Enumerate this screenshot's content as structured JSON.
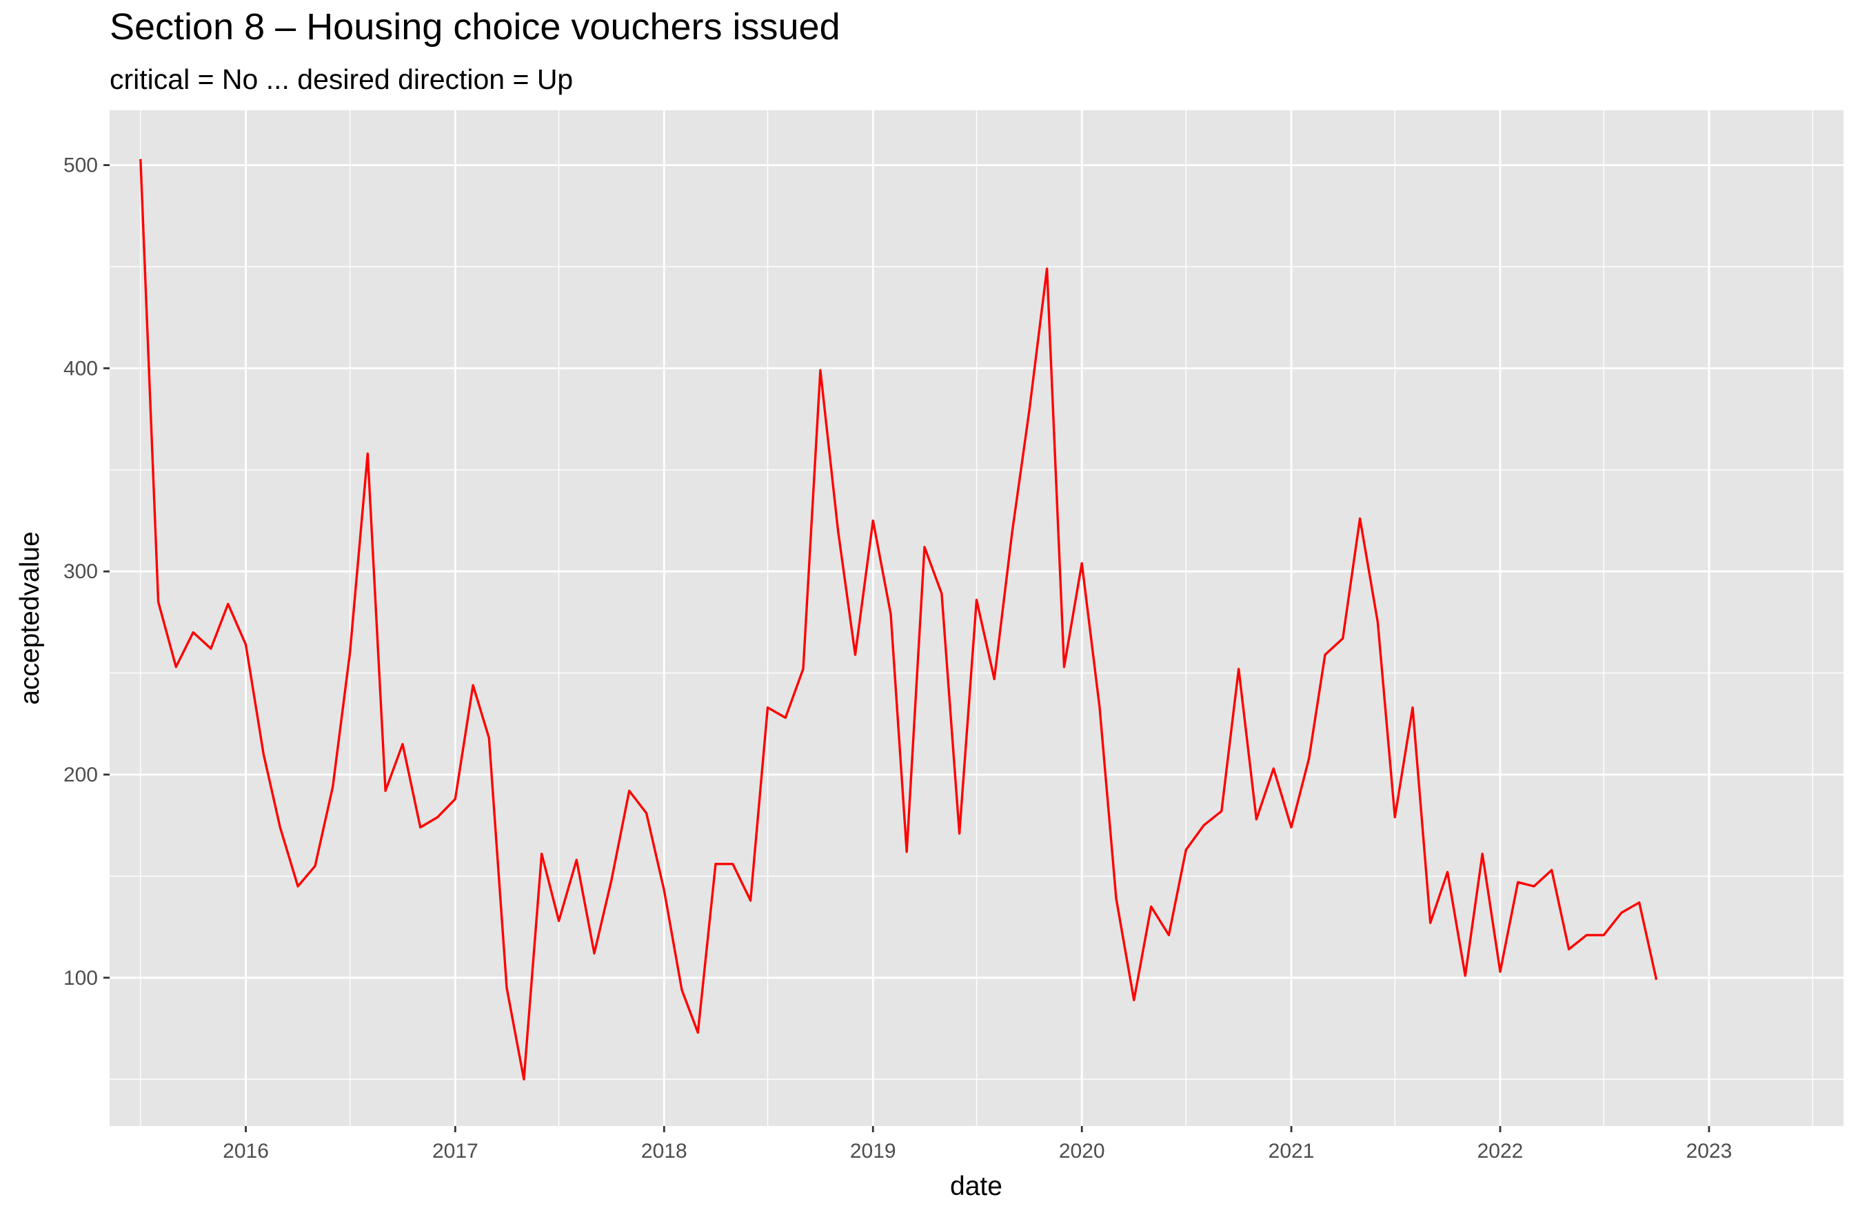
{
  "chart_data": {
    "type": "line",
    "title": "Section 8 – Housing choice vouchers issued",
    "subtitle": "critical = No ... desired direction = Up",
    "xlabel": "date",
    "ylabel": "acceptedvalue",
    "x_tick_labels": [
      "2016",
      "2017",
      "2018",
      "2019",
      "2020",
      "2021",
      "2022",
      "2023"
    ],
    "y_tick_labels": [
      "100",
      "200",
      "300",
      "400",
      "500"
    ],
    "ylim": [
      27,
      527
    ],
    "xlim": [
      "2015-05-08",
      "2023-08-24"
    ],
    "grid": true,
    "background": "#e5e5e5",
    "gridline_color": "#ffffff",
    "line_color": "#ff0000",
    "series": [
      {
        "x": [
          "2015-07-01",
          "2015-08-01",
          "2015-09-01",
          "2015-10-01",
          "2015-11-01",
          "2015-12-01",
          "2016-01-01",
          "2016-02-01",
          "2016-03-01",
          "2016-04-01",
          "2016-05-01",
          "2016-06-01",
          "2016-07-01",
          "2016-08-01",
          "2016-09-01",
          "2016-10-01",
          "2016-11-01",
          "2016-12-01",
          "2017-01-01",
          "2017-02-01",
          "2017-03-01",
          "2017-04-01",
          "2017-05-01",
          "2017-06-01",
          "2017-07-01",
          "2017-08-01",
          "2017-09-01",
          "2017-10-01",
          "2017-11-01",
          "2017-12-01",
          "2018-01-01",
          "2018-02-01",
          "2018-03-01",
          "2018-04-01",
          "2018-05-01",
          "2018-06-01",
          "2018-07-01",
          "2018-08-01",
          "2018-09-01",
          "2018-10-01",
          "2018-11-01",
          "2018-12-01",
          "2019-01-01",
          "2019-02-01",
          "2019-03-01",
          "2019-04-01",
          "2019-05-01",
          "2019-06-01",
          "2019-07-01",
          "2019-08-01",
          "2019-09-01",
          "2019-10-01",
          "2019-11-01",
          "2019-12-01",
          "2020-01-01",
          "2020-02-01",
          "2020-03-01",
          "2020-04-01",
          "2020-05-01",
          "2020-06-01",
          "2020-07-01",
          "2020-08-01",
          "2020-09-01",
          "2020-10-01",
          "2020-11-01",
          "2020-12-01",
          "2021-01-01",
          "2021-02-01",
          "2021-03-01",
          "2021-04-01",
          "2021-05-01",
          "2021-06-01",
          "2021-07-01",
          "2021-08-01",
          "2021-09-01",
          "2021-10-01",
          "2021-11-01",
          "2021-12-01",
          "2022-01-01",
          "2022-02-01",
          "2022-03-01",
          "2022-04-01",
          "2022-05-01",
          "2022-06-01",
          "2022-07-01",
          "2022-08-01",
          "2022-09-01",
          "2022-10-01"
        ],
        "values": [
          503,
          285,
          253,
          270,
          262,
          284,
          264,
          210,
          174,
          145,
          155,
          194,
          260,
          358,
          192,
          215,
          174,
          179,
          188,
          244,
          218,
          95,
          50,
          161,
          128,
          158,
          112,
          148,
          192,
          181,
          143,
          94,
          73,
          156,
          156,
          138,
          233,
          228,
          252,
          399,
          320,
          259,
          325,
          279,
          162,
          312,
          289,
          171,
          286,
          247,
          319,
          379,
          449,
          253,
          304,
          233,
          139,
          89,
          135,
          121,
          163,
          175,
          182,
          252,
          178,
          203,
          174,
          208,
          259,
          267,
          326,
          275,
          179,
          233,
          127,
          152,
          101,
          161,
          103,
          147,
          145,
          153,
          114,
          121,
          121,
          132,
          137,
          99
        ]
      }
    ]
  }
}
